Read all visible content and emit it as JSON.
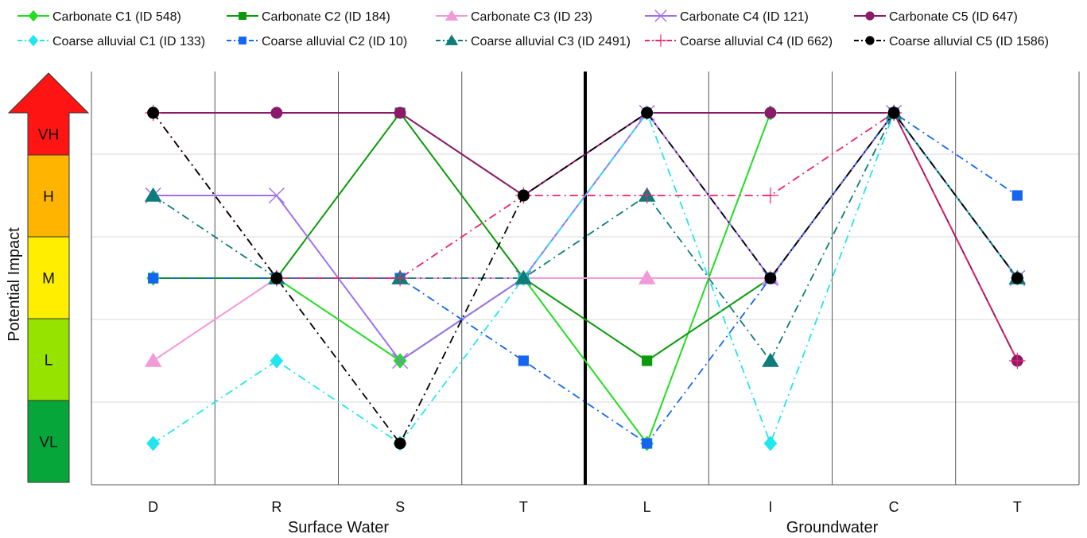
{
  "chart_data": {
    "type": "line",
    "ylabel": "Potential Impact",
    "categories": [
      "D",
      "R",
      "S",
      "T",
      "L",
      "I",
      "C",
      "T"
    ],
    "groups": [
      {
        "label": "Surface Water",
        "from": 0,
        "to": 3
      },
      {
        "label": "Groundwater",
        "from": 4,
        "to": 7
      }
    ],
    "levels": [
      {
        "label": "VL",
        "value": 1,
        "color": "#07a63a"
      },
      {
        "label": "L",
        "value": 2,
        "color": "#97e300"
      },
      {
        "label": "M",
        "value": 3,
        "color": "#ffee00"
      },
      {
        "label": "H",
        "value": 4,
        "color": "#ffb400"
      },
      {
        "label": "VH",
        "value": 5,
        "color": "#ff1414"
      }
    ],
    "ylim": [
      0.5,
      5.5
    ],
    "legend_position": "top",
    "series": [
      {
        "name": "Carbonate  C1 (ID 548)",
        "color": "#22dd22",
        "dash": "solid",
        "marker": "diamond",
        "values": [
          3,
          3,
          2,
          3,
          1,
          5,
          5,
          3
        ]
      },
      {
        "name": "Carbonate  C2 (ID 184)",
        "color": "#0a9a0a",
        "dash": "solid",
        "marker": "square",
        "values": [
          3,
          3,
          5,
          3,
          2,
          3,
          5,
          3
        ]
      },
      {
        "name": "Carbonate  C3  (ID 23)",
        "color": "#f29ad8",
        "dash": "solid",
        "marker": "triangle",
        "values": [
          2,
          3,
          3,
          3,
          3,
          3,
          5,
          3
        ]
      },
      {
        "name": "Carbonate  C4 (ID 121)",
        "color": "#a070f0",
        "dash": "solid",
        "marker": "x",
        "values": [
          4,
          4,
          2,
          3,
          5,
          3,
          5,
          3
        ]
      },
      {
        "name": "Carbonate  C5 (ID 647)",
        "color": "#8a1a6a",
        "dash": "solid",
        "marker": "circle",
        "values": [
          5,
          5,
          5,
          4,
          5,
          5,
          5,
          2
        ]
      },
      {
        "name": "Coarse alluvial  C1 (ID 133)",
        "color": "#22e6ee",
        "dash": "dashdot",
        "marker": "diamond",
        "values": [
          1,
          2,
          1,
          3,
          5,
          1,
          5,
          3
        ]
      },
      {
        "name": "Coarse alluvial  C2 (ID 10)",
        "color": "#1466f0",
        "dash": "dashdot",
        "marker": "square",
        "values": [
          3,
          3,
          3,
          2,
          1,
          3,
          5,
          4
        ]
      },
      {
        "name": "Coarse alluvial  C3 (ID 2491)",
        "color": "#0e7c7a",
        "dash": "dashdot",
        "marker": "triangle",
        "values": [
          4,
          3,
          3,
          3,
          4,
          2,
          5,
          3
        ]
      },
      {
        "name": "Coarse alluvial  C4 (ID 662)",
        "color": "#ee2266",
        "dash": "dashdot",
        "marker": "plus",
        "values": [
          5,
          3,
          3,
          4,
          4,
          4,
          5,
          2
        ]
      },
      {
        "name": "Coarse alluvial  C5 (ID 1586)",
        "color": "#000000",
        "dash": "dashdot",
        "marker": "circle",
        "values": [
          5,
          3,
          1,
          4,
          5,
          3,
          5,
          3
        ]
      }
    ]
  }
}
